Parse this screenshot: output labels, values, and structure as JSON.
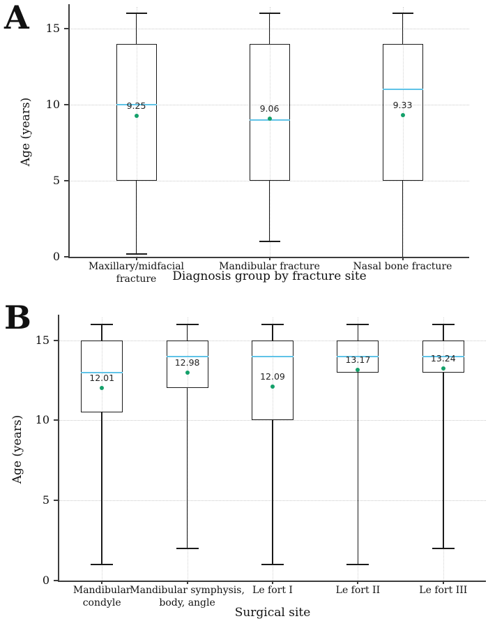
{
  "colors": {
    "median_line": "#5fc3e7",
    "mean_dot": "#14a06a",
    "box_border": "#1a1a1a",
    "axis": "#3c3c3c",
    "grid": "#c9c9c9",
    "annotation_text": "#222222"
  },
  "chart_data": [
    {
      "type": "boxplot",
      "panel_letter": "A",
      "xlabel": "Diagnosis group by fracture site",
      "ylabel": "Age (years)",
      "ylim": [
        0,
        16.42
      ],
      "yticks": [
        0,
        5,
        10,
        15
      ],
      "ygrid": [
        5,
        10,
        15
      ],
      "grid": "dotted",
      "legend": "none",
      "categories": [
        "Maxillary/midfacial fracture",
        "Mandibular fracture",
        "Nasal bone fracture"
      ],
      "category_lines": [
        [
          "Maxillary/midfacial fracture"
        ],
        [
          "Mandibular fracture"
        ],
        [
          "Nasal bone fracture"
        ]
      ],
      "boxes": [
        {
          "whisker_low": 0.2,
          "q1": 5,
          "median": 10,
          "q3": 14,
          "whisker_high": 16,
          "mean": 9.25,
          "mean_label": "9.25"
        },
        {
          "whisker_low": 1,
          "q1": 5,
          "median": 9,
          "q3": 14,
          "whisker_high": 16,
          "mean": 9.06,
          "mean_label": "9.06"
        },
        {
          "whisker_low": 0,
          "q1": 5,
          "median": 11,
          "q3": 14,
          "whisker_high": 16,
          "mean": 9.33,
          "mean_label": "9.33"
        }
      ]
    },
    {
      "type": "boxplot",
      "panel_letter": "B",
      "xlabel": "Surgical site",
      "ylabel": "Age (years)",
      "ylim": [
        0,
        16.42
      ],
      "yticks": [
        0,
        5,
        10,
        15
      ],
      "ygrid": [
        5,
        10,
        15
      ],
      "grid": "dotted",
      "legend": "none",
      "categories": [
        "Mandibular condyle",
        "Mandibular symphysis, body, angle",
        "Le fort I",
        "Le fort II",
        "Le fort III"
      ],
      "category_lines": [
        [
          "Mandibular",
          "condyle"
        ],
        [
          "Mandibular symphysis,",
          "body, angle"
        ],
        [
          "Le fort I"
        ],
        [
          "Le fort II"
        ],
        [
          "Le fort III"
        ]
      ],
      "boxes": [
        {
          "whisker_low": 1,
          "q1": 10.5,
          "median": 13,
          "q3": 15,
          "whisker_high": 16,
          "mean": 12.01,
          "mean_label": "12.01"
        },
        {
          "whisker_low": 2,
          "q1": 12,
          "median": 14,
          "q3": 15,
          "whisker_high": 16,
          "mean": 12.98,
          "mean_label": "12.98"
        },
        {
          "whisker_low": 1,
          "q1": 10,
          "median": 14,
          "q3": 15,
          "whisker_high": 16,
          "mean": 12.09,
          "mean_label": "12.09"
        },
        {
          "whisker_low": 1,
          "q1": 13,
          "median": 14,
          "q3": 15,
          "whisker_high": 16,
          "mean": 13.17,
          "mean_label": "13.17"
        },
        {
          "whisker_low": 2,
          "q1": 13,
          "median": 14,
          "q3": 15,
          "whisker_high": 16,
          "mean": 13.24,
          "mean_label": "13.24"
        }
      ]
    }
  ]
}
